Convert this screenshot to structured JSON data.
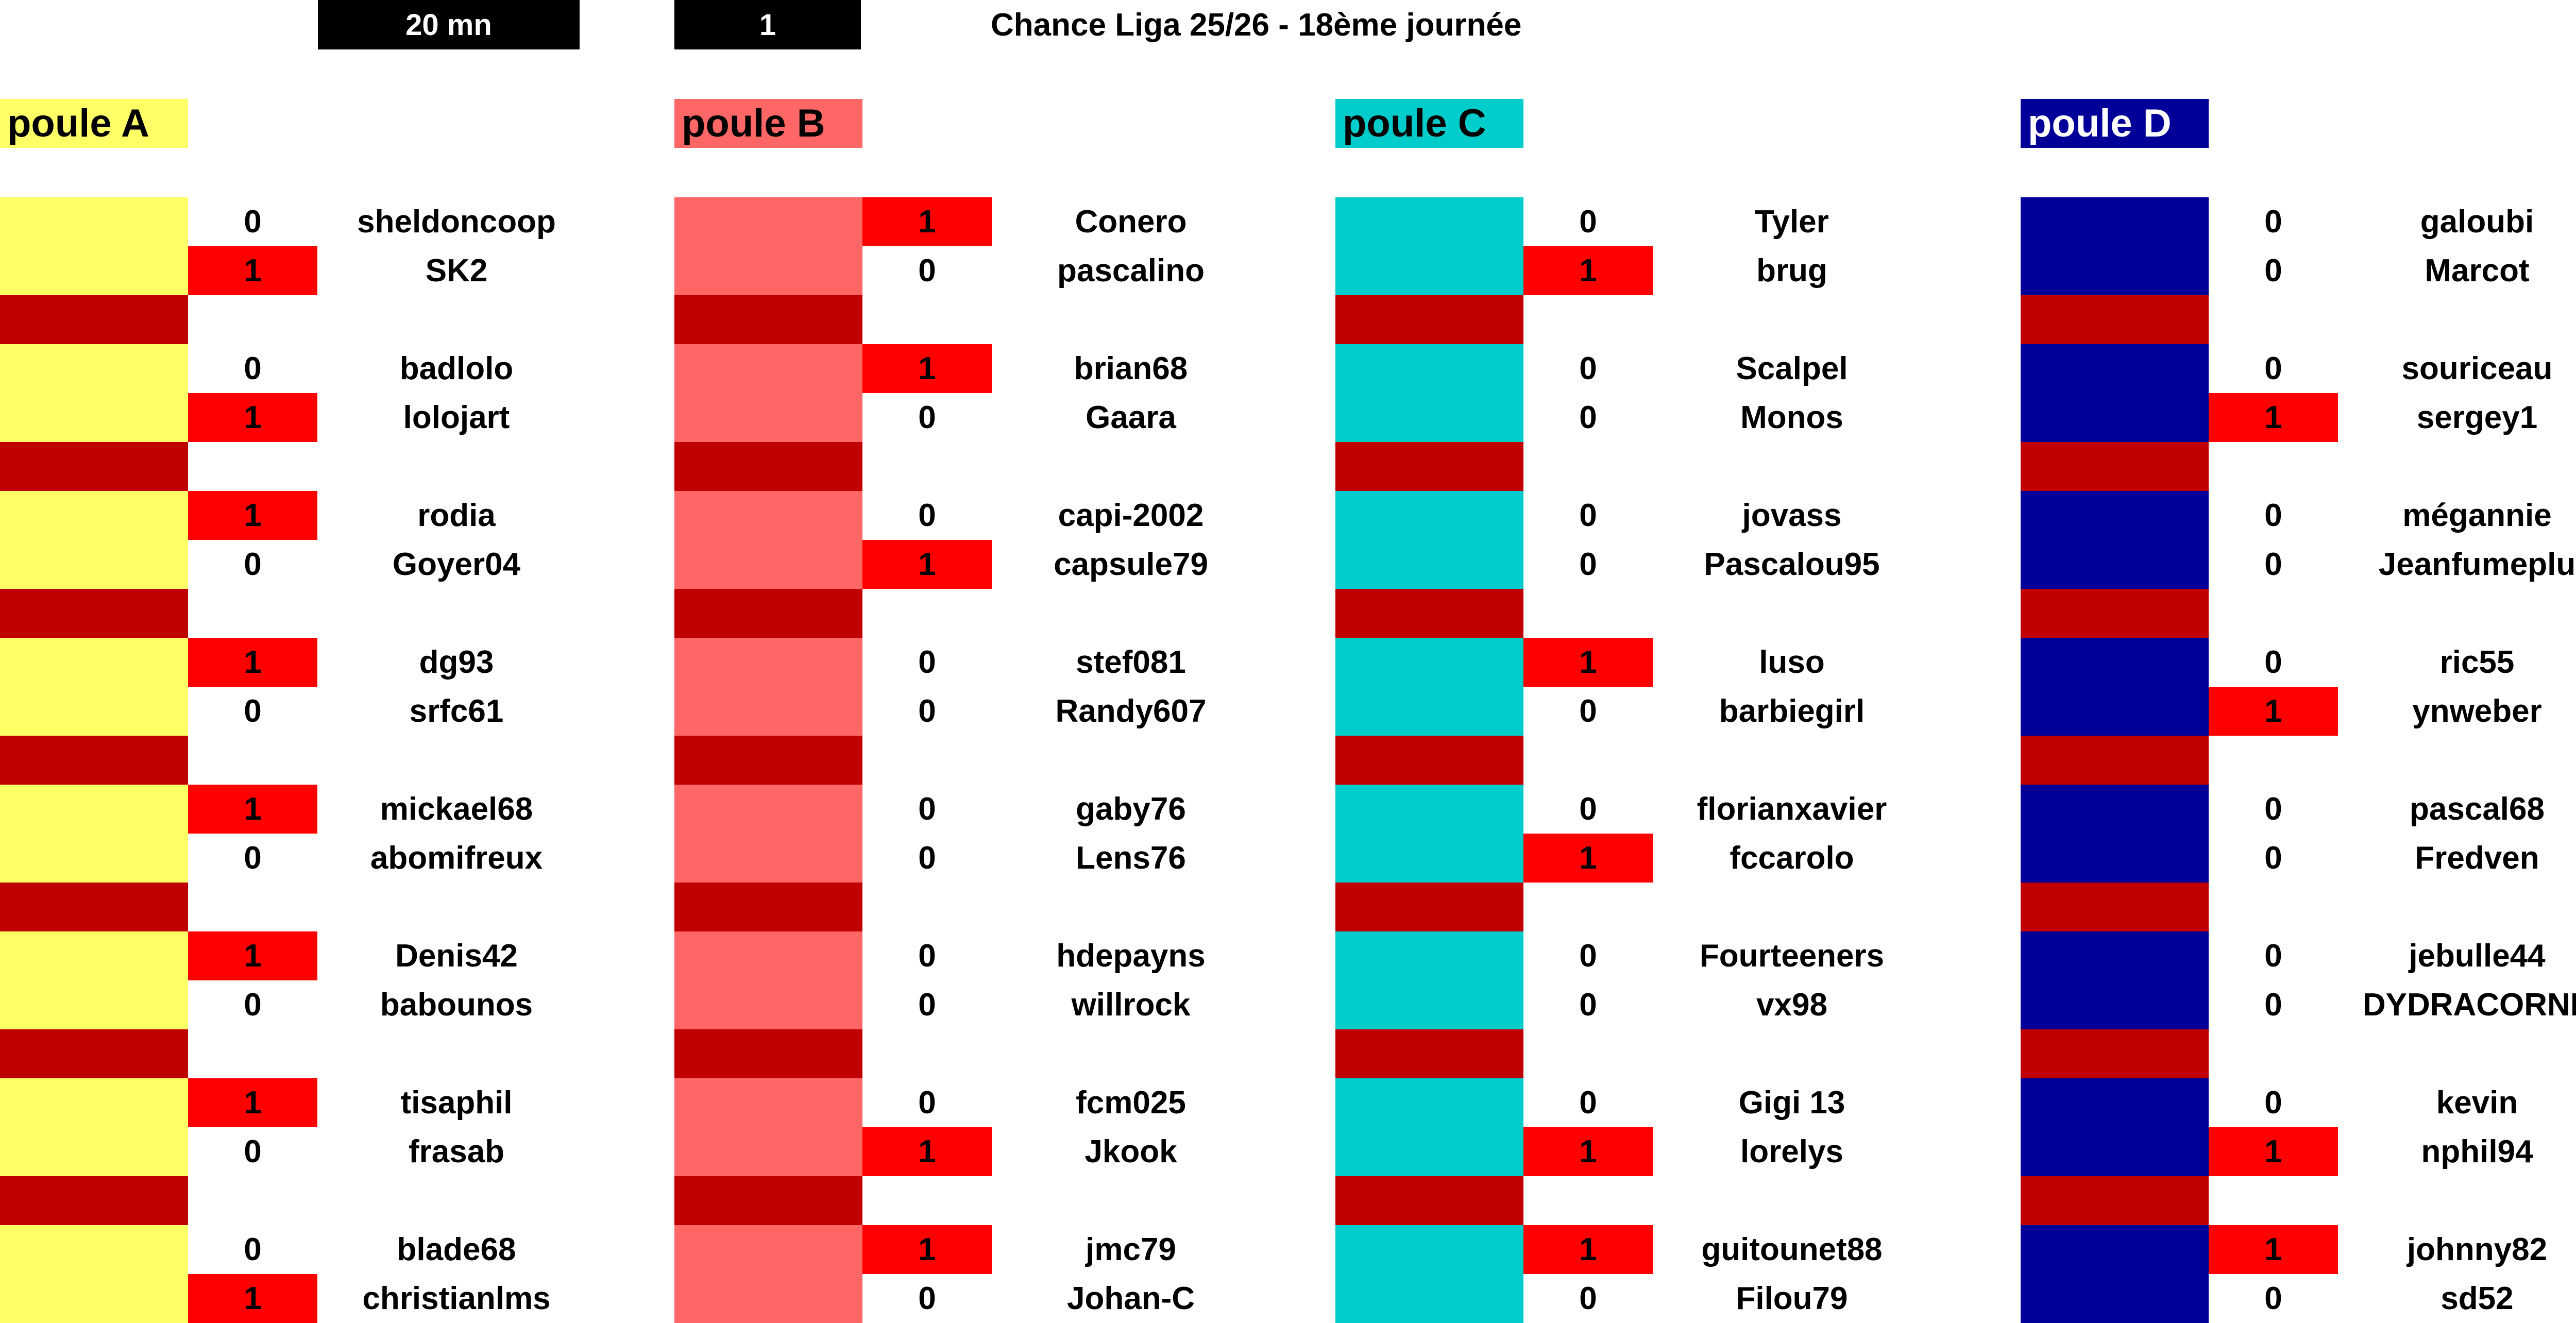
{
  "header": {
    "timer": "20 mn",
    "round": "1",
    "title": "Chance Liga 25/26 - 18ème journée"
  },
  "colors": {
    "separator": "#c00000",
    "win": "#ff0000"
  },
  "pools": [
    {
      "label": "poule A",
      "color": "#ffff66",
      "labelColor": "#000000",
      "matches": [
        [
          {
            "name": "sheldoncoop",
            "score": "0",
            "win": false
          },
          {
            "name": "SK2",
            "score": "1",
            "win": true
          }
        ],
        [
          {
            "name": "badlolo",
            "score": "0",
            "win": false
          },
          {
            "name": "lolojart",
            "score": "1",
            "win": true
          }
        ],
        [
          {
            "name": "rodia",
            "score": "1",
            "win": true
          },
          {
            "name": "Goyer04",
            "score": "0",
            "win": false
          }
        ],
        [
          {
            "name": "dg93",
            "score": "1",
            "win": true
          },
          {
            "name": "srfc61",
            "score": "0",
            "win": false
          }
        ],
        [
          {
            "name": "mickael68",
            "score": "1",
            "win": true
          },
          {
            "name": "abomifreux",
            "score": "0",
            "win": false
          }
        ],
        [
          {
            "name": "Denis42",
            "score": "1",
            "win": true
          },
          {
            "name": "babounos",
            "score": "0",
            "win": false
          }
        ],
        [
          {
            "name": "tisaphil",
            "score": "1",
            "win": true
          },
          {
            "name": "frasab",
            "score": "0",
            "win": false
          }
        ],
        [
          {
            "name": "blade68",
            "score": "0",
            "win": false
          },
          {
            "name": "christianlms",
            "score": "1",
            "win": true
          }
        ]
      ]
    },
    {
      "label": "poule B",
      "color": "#ff6666",
      "labelColor": "#000000",
      "matches": [
        [
          {
            "name": "Conero",
            "score": "1",
            "win": true
          },
          {
            "name": "pascalino",
            "score": "0",
            "win": false
          }
        ],
        [
          {
            "name": "brian68",
            "score": "1",
            "win": true
          },
          {
            "name": "Gaara",
            "score": "0",
            "win": false
          }
        ],
        [
          {
            "name": "capi-2002",
            "score": "0",
            "win": false
          },
          {
            "name": "capsule79",
            "score": "1",
            "win": true
          }
        ],
        [
          {
            "name": "stef081",
            "score": "0",
            "win": false
          },
          {
            "name": "Randy607",
            "score": "0",
            "win": false
          }
        ],
        [
          {
            "name": "gaby76",
            "score": "0",
            "win": false
          },
          {
            "name": "Lens76",
            "score": "0",
            "win": false
          }
        ],
        [
          {
            "name": "hdepayns",
            "score": "0",
            "win": false
          },
          {
            "name": "willrock",
            "score": "0",
            "win": false
          }
        ],
        [
          {
            "name": "fcm025",
            "score": "0",
            "win": false
          },
          {
            "name": "Jkook",
            "score": "1",
            "win": true
          }
        ],
        [
          {
            "name": "jmc79",
            "score": "1",
            "win": true
          },
          {
            "name": "Johan-C",
            "score": "0",
            "win": false
          }
        ]
      ]
    },
    {
      "label": "poule C",
      "color": "#00cccc",
      "labelColor": "#000000",
      "matches": [
        [
          {
            "name": "Tyler",
            "score": "0",
            "win": false
          },
          {
            "name": "brug",
            "score": "1",
            "win": true
          }
        ],
        [
          {
            "name": "Scalpel",
            "score": "0",
            "win": false
          },
          {
            "name": "Monos",
            "score": "0",
            "win": false
          }
        ],
        [
          {
            "name": "jovass",
            "score": "0",
            "win": false
          },
          {
            "name": "Pascalou95",
            "score": "0",
            "win": false
          }
        ],
        [
          {
            "name": "luso",
            "score": "1",
            "win": true
          },
          {
            "name": "barbiegirl",
            "score": "0",
            "win": false
          }
        ],
        [
          {
            "name": "florianxavier",
            "score": "0",
            "win": false
          },
          {
            "name": "fccarolo",
            "score": "1",
            "win": true
          }
        ],
        [
          {
            "name": "Fourteeners",
            "score": "0",
            "win": false
          },
          {
            "name": "vx98",
            "score": "0",
            "win": false
          }
        ],
        [
          {
            "name": "Gigi 13",
            "score": "0",
            "win": false
          },
          {
            "name": "lorelys",
            "score": "1",
            "win": true
          }
        ],
        [
          {
            "name": "guitounet88",
            "score": "1",
            "win": true
          },
          {
            "name": "Filou79",
            "score": "0",
            "win": false
          }
        ]
      ]
    },
    {
      "label": "poule D",
      "color": "#000099",
      "labelColor": "#ffffff",
      "matches": [
        [
          {
            "name": "galoubi",
            "score": "0",
            "win": false
          },
          {
            "name": "Marcot",
            "score": "0",
            "win": false
          }
        ],
        [
          {
            "name": "souriceau",
            "score": "0",
            "win": false
          },
          {
            "name": "sergey1",
            "score": "1",
            "win": true
          }
        ],
        [
          {
            "name": "mégannie",
            "score": "0",
            "win": false
          },
          {
            "name": "Jeanfumeplu",
            "score": "0",
            "win": false
          }
        ],
        [
          {
            "name": "ric55",
            "score": "0",
            "win": false
          },
          {
            "name": "ynweber",
            "score": "1",
            "win": true
          }
        ],
        [
          {
            "name": "pascal68",
            "score": "0",
            "win": false
          },
          {
            "name": "Fredven",
            "score": "0",
            "win": false
          }
        ],
        [
          {
            "name": "jebulle44",
            "score": "0",
            "win": false
          },
          {
            "name": "DYDRACORNE",
            "score": "0",
            "win": false
          }
        ],
        [
          {
            "name": "kevin",
            "score": "0",
            "win": false
          },
          {
            "name": "nphil94",
            "score": "1",
            "win": true
          }
        ],
        [
          {
            "name": "johnny82",
            "score": "1",
            "win": true
          },
          {
            "name": "sd52",
            "score": "0",
            "win": false
          }
        ]
      ]
    }
  ]
}
